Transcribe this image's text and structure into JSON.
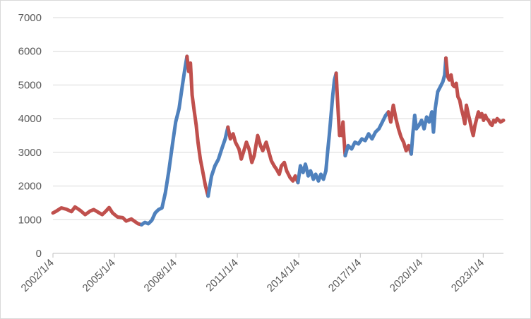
{
  "chart_data": {
    "type": "line",
    "title": "",
    "xlabel": "",
    "ylabel": "",
    "ylim": [
      0,
      7000
    ],
    "yticks": [
      0,
      1000,
      2000,
      3000,
      4000,
      5000,
      6000,
      7000
    ],
    "xlim": [
      "2002-01-04",
      "2023-12-31"
    ],
    "xticks": [
      "2002/1/4",
      "2005/1/4",
      "2008/1/4",
      "2011/1/4",
      "2014/1/4",
      "2017/1/4",
      "2020/1/4",
      "2023/1/4"
    ],
    "grid": "horizontal",
    "legend": "none",
    "colors": {
      "up": "#4f81bd",
      "down": "#c0504d",
      "grid": "#d9d9d9",
      "axis": "#bfbfbf",
      "text": "#595959"
    },
    "series": [
      {
        "color": "#c0504d",
        "points": [
          [
            "2002-01-04",
            1200
          ],
          [
            "2002-03-01",
            1250
          ],
          [
            "2002-06-01",
            1350
          ],
          [
            "2002-09-01",
            1310
          ],
          [
            "2002-12-01",
            1240
          ],
          [
            "2003-02-01",
            1380
          ],
          [
            "2003-05-01",
            1280
          ],
          [
            "2003-08-01",
            1150
          ],
          [
            "2003-11-01",
            1260
          ],
          [
            "2004-01-01",
            1300
          ],
          [
            "2004-04-01",
            1210
          ],
          [
            "2004-06-01",
            1150
          ],
          [
            "2004-08-01",
            1250
          ],
          [
            "2004-10-01",
            1360
          ],
          [
            "2004-12-01",
            1200
          ],
          [
            "2005-03-01",
            1080
          ],
          [
            "2005-06-01",
            1060
          ],
          [
            "2005-08-01",
            960
          ],
          [
            "2005-11-01",
            1020
          ],
          [
            "2006-01-01",
            950
          ],
          [
            "2006-03-01",
            880
          ],
          [
            "2006-05-01",
            850
          ]
        ]
      },
      {
        "color": "#4f81bd",
        "points": [
          [
            "2006-05-01",
            850
          ],
          [
            "2006-07-01",
            920
          ],
          [
            "2006-09-01",
            880
          ],
          [
            "2006-11-01",
            980
          ],
          [
            "2007-01-01",
            1200
          ],
          [
            "2007-03-01",
            1300
          ],
          [
            "2007-05-01",
            1350
          ],
          [
            "2007-07-01",
            1800
          ],
          [
            "2007-09-01",
            2450
          ],
          [
            "2007-11-01",
            3200
          ],
          [
            "2008-01-01",
            3900
          ],
          [
            "2008-03-01",
            4300
          ],
          [
            "2008-05-01",
            5000
          ],
          [
            "2008-06-15",
            5500
          ],
          [
            "2008-07-20",
            5850
          ]
        ]
      },
      {
        "color": "#c0504d",
        "points": [
          [
            "2008-07-20",
            5850
          ],
          [
            "2008-08-20",
            5400
          ],
          [
            "2008-09-20",
            5650
          ],
          [
            "2008-10-20",
            4700
          ],
          [
            "2008-11-20",
            4300
          ],
          [
            "2009-01-01",
            3800
          ],
          [
            "2009-02-01",
            3300
          ],
          [
            "2009-03-15",
            2800
          ],
          [
            "2009-05-01",
            2400
          ],
          [
            "2009-06-15",
            2000
          ],
          [
            "2009-08-01",
            1700
          ]
        ]
      },
      {
        "color": "#4f81bd",
        "points": [
          [
            "2009-08-01",
            1700
          ],
          [
            "2009-10-01",
            2300
          ],
          [
            "2009-12-01",
            2600
          ],
          [
            "2010-02-01",
            2800
          ],
          [
            "2010-04-01",
            3100
          ],
          [
            "2010-06-01",
            3400
          ],
          [
            "2010-07-20",
            3750
          ]
        ]
      },
      {
        "color": "#c0504d",
        "points": [
          [
            "2010-07-20",
            3750
          ],
          [
            "2010-09-01",
            3400
          ],
          [
            "2010-10-20",
            3550
          ],
          [
            "2010-12-01",
            3300
          ],
          [
            "2011-02-01",
            3100
          ],
          [
            "2011-03-15",
            2800
          ],
          [
            "2011-05-01",
            3050
          ],
          [
            "2011-06-15",
            3300
          ],
          [
            "2011-08-01",
            3100
          ],
          [
            "2011-09-20",
            2700
          ],
          [
            "2011-11-01",
            2900
          ],
          [
            "2012-01-01",
            3500
          ],
          [
            "2012-02-20",
            3200
          ],
          [
            "2012-04-01",
            3050
          ],
          [
            "2012-06-01",
            3300
          ],
          [
            "2012-07-20",
            3000
          ],
          [
            "2012-09-01",
            2750
          ],
          [
            "2012-10-20",
            2600
          ],
          [
            "2012-12-01",
            2500
          ],
          [
            "2013-01-20",
            2350
          ],
          [
            "2013-03-01",
            2600
          ],
          [
            "2013-04-20",
            2700
          ],
          [
            "2013-06-01",
            2450
          ],
          [
            "2013-08-01",
            2250
          ],
          [
            "2013-09-20",
            2150
          ],
          [
            "2013-11-01",
            2300
          ],
          [
            "2013-12-20",
            2100
          ]
        ]
      },
      {
        "color": "#4f81bd",
        "points": [
          [
            "2013-12-20",
            2100
          ],
          [
            "2014-02-01",
            2600
          ],
          [
            "2014-03-20",
            2400
          ],
          [
            "2014-05-01",
            2650
          ],
          [
            "2014-06-20",
            2300
          ],
          [
            "2014-08-01",
            2450
          ],
          [
            "2014-09-20",
            2200
          ],
          [
            "2014-11-01",
            2350
          ],
          [
            "2014-12-20",
            2150
          ],
          [
            "2015-02-01",
            2350
          ],
          [
            "2015-03-20",
            2200
          ],
          [
            "2015-05-01",
            2450
          ],
          [
            "2015-06-01",
            3000
          ],
          [
            "2015-07-01",
            3500
          ],
          [
            "2015-08-01",
            4100
          ],
          [
            "2015-09-01",
            4700
          ],
          [
            "2015-10-01",
            5150
          ],
          [
            "2015-11-01",
            5350
          ]
        ]
      },
      {
        "color": "#c0504d",
        "points": [
          [
            "2015-11-01",
            5350
          ],
          [
            "2015-11-20",
            4700
          ],
          [
            "2015-12-10",
            4100
          ],
          [
            "2016-01-01",
            3500
          ],
          [
            "2016-01-20",
            3700
          ],
          [
            "2016-02-10",
            3500
          ],
          [
            "2016-03-01",
            3900
          ],
          [
            "2016-03-20",
            3400
          ],
          [
            "2016-04-10",
            2900
          ]
        ]
      },
      {
        "color": "#4f81bd",
        "points": [
          [
            "2016-04-10",
            2900
          ],
          [
            "2016-06-01",
            3200
          ],
          [
            "2016-08-01",
            3100
          ],
          [
            "2016-10-01",
            3300
          ],
          [
            "2016-12-01",
            3250
          ],
          [
            "2017-02-01",
            3400
          ],
          [
            "2017-04-01",
            3350
          ],
          [
            "2017-06-01",
            3550
          ],
          [
            "2017-08-01",
            3400
          ],
          [
            "2017-10-01",
            3600
          ],
          [
            "2017-12-01",
            3700
          ],
          [
            "2018-02-01",
            3900
          ],
          [
            "2018-04-01",
            4100
          ],
          [
            "2018-05-20",
            4200
          ]
        ]
      },
      {
        "color": "#c0504d",
        "points": [
          [
            "2018-05-20",
            4200
          ],
          [
            "2018-07-01",
            3900
          ],
          [
            "2018-08-15",
            4400
          ],
          [
            "2018-10-01",
            4000
          ],
          [
            "2018-11-15",
            3700
          ],
          [
            "2019-01-01",
            3450
          ],
          [
            "2019-02-15",
            3300
          ],
          [
            "2019-04-01",
            3050
          ],
          [
            "2019-05-15",
            3200
          ],
          [
            "2019-07-01",
            2950
          ]
        ]
      },
      {
        "color": "#4f81bd",
        "points": [
          [
            "2019-07-01",
            2950
          ],
          [
            "2019-08-01",
            3600
          ],
          [
            "2019-09-01",
            4100
          ],
          [
            "2019-10-01",
            3700
          ],
          [
            "2019-11-15",
            3800
          ],
          [
            "2020-01-01",
            3950
          ],
          [
            "2020-02-15",
            3700
          ],
          [
            "2020-04-01",
            4050
          ],
          [
            "2020-05-15",
            3900
          ],
          [
            "2020-07-01",
            4200
          ],
          [
            "2020-08-01",
            3600
          ],
          [
            "2020-09-01",
            4300
          ],
          [
            "2020-10-15",
            4800
          ],
          [
            "2020-12-01",
            4950
          ],
          [
            "2021-01-15",
            5100
          ],
          [
            "2021-02-15",
            5300
          ],
          [
            "2021-03-10",
            5800
          ]
        ]
      },
      {
        "color": "#c0504d",
        "points": [
          [
            "2021-03-10",
            5800
          ],
          [
            "2021-04-10",
            5250
          ],
          [
            "2021-05-10",
            5150
          ],
          [
            "2021-06-10",
            5300
          ],
          [
            "2021-07-10",
            5000
          ],
          [
            "2021-08-10",
            4950
          ],
          [
            "2021-09-10",
            5050
          ],
          [
            "2021-10-10",
            4650
          ],
          [
            "2021-11-10",
            4550
          ],
          [
            "2021-12-10",
            4300
          ],
          [
            "2022-01-10",
            4100
          ],
          [
            "2022-02-10",
            3850
          ],
          [
            "2022-03-10",
            4400
          ],
          [
            "2022-04-10",
            4150
          ],
          [
            "2022-05-10",
            3950
          ],
          [
            "2022-06-10",
            3700
          ],
          [
            "2022-07-10",
            3500
          ],
          [
            "2022-08-10",
            3800
          ],
          [
            "2022-09-10",
            4000
          ],
          [
            "2022-10-10",
            4200
          ],
          [
            "2022-11-10",
            4050
          ],
          [
            "2022-12-10",
            4150
          ],
          [
            "2023-01-10",
            3950
          ],
          [
            "2023-02-10",
            4100
          ],
          [
            "2023-03-10",
            4000
          ],
          [
            "2023-04-10",
            3950
          ],
          [
            "2023-05-10",
            3850
          ],
          [
            "2023-06-10",
            3800
          ],
          [
            "2023-07-10",
            3950
          ],
          [
            "2023-08-10",
            3900
          ],
          [
            "2023-09-10",
            4000
          ],
          [
            "2023-10-10",
            3950
          ],
          [
            "2023-11-10",
            3900
          ],
          [
            "2023-12-31",
            3950
          ]
        ]
      }
    ]
  }
}
